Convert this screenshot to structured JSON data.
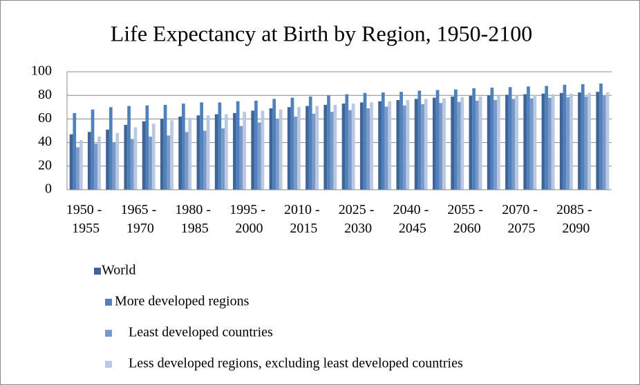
{
  "chart_data": {
    "type": "bar",
    "title": "Life Expectancy at Birth by Region, 1950-2100",
    "categories": [
      "1950 - 1955",
      null,
      null,
      "1965 - 1970",
      null,
      null,
      "1980 - 1985",
      null,
      null,
      "1995 - 2000",
      null,
      null,
      "2010 - 2015",
      null,
      null,
      "2025 - 2030",
      null,
      null,
      "2040 - 2045",
      null,
      null,
      "2055 - 2060",
      null,
      null,
      "2070 - 2075",
      null,
      null,
      "2085 - 2090",
      null,
      null
    ],
    "series": [
      {
        "name": "World",
        "color": "#3f6497",
        "values": [
          47,
          49,
          51,
          55,
          58,
          60,
          62,
          63,
          64,
          65,
          67,
          69,
          70,
          71,
          72,
          73,
          74,
          75,
          76,
          77,
          78,
          79,
          79.5,
          80,
          80.5,
          81,
          81.5,
          82,
          82.5,
          83
        ]
      },
      {
        "name": "More developed regions",
        "color": "#4f81bd",
        "values": [
          65,
          68,
          70,
          71,
          71.5,
          72,
          73,
          74,
          74,
          75,
          75.5,
          77,
          78,
          79,
          80,
          81,
          82,
          82.5,
          83,
          84,
          84.5,
          85,
          86,
          86.5,
          87,
          87.5,
          88,
          89,
          89.5,
          90
        ]
      },
      {
        "name": "Least developed countries",
        "color": "#7a99c9",
        "values": [
          36,
          39,
          40,
          43,
          45,
          46,
          49,
          50,
          52,
          54,
          57,
          60,
          62,
          64.5,
          66,
          67.5,
          69,
          70.5,
          71.5,
          72.5,
          73.5,
          74.5,
          75.5,
          76,
          77,
          77.5,
          78,
          78.5,
          79,
          80
        ]
      },
      {
        "name": "Less developed regions, excluding least developed countries",
        "color": "#b9c8e3",
        "values": [
          42,
          45,
          48,
          53,
          56,
          59,
          61,
          63,
          64,
          66,
          67,
          68,
          70,
          71,
          72,
          73,
          74,
          75,
          76,
          77,
          77.5,
          78.5,
          79,
          79.5,
          80,
          80.5,
          81,
          81.5,
          82,
          82.5
        ]
      }
    ],
    "ylim": [
      0,
      100
    ],
    "yticks": [
      0,
      20,
      40,
      60,
      80,
      100
    ],
    "grid": true,
    "legend": "bottom"
  }
}
